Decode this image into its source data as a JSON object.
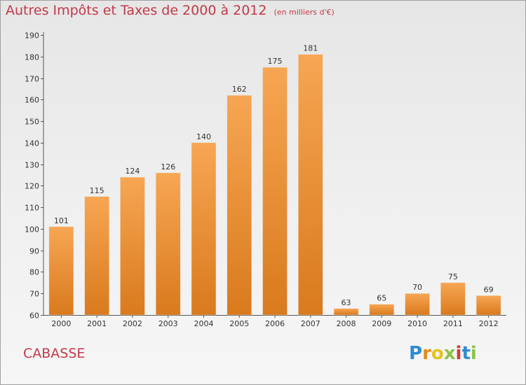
{
  "header": {
    "title": "Autres Impôts et Taxes de 2000 à 2012",
    "unit": "(en milliers d'€)"
  },
  "footer": {
    "commune": "CABASSE",
    "logo_letters": [
      "P",
      "r",
      "o",
      "x",
      "i",
      "t",
      "i"
    ],
    "logo_colors": [
      "#2e8bd0",
      "#e68a1a",
      "#e6c21a",
      "#8bc34a",
      "#d23a3a",
      "#2e8bd0",
      "#8bc34a"
    ]
  },
  "colors": {
    "bar_light": "#f7a653",
    "bar_dark": "#d97a1d",
    "title": "#c03a4a"
  },
  "chart_data": {
    "type": "bar",
    "title": "Autres Impôts et Taxes de 2000 à 2012",
    "subtitle": "(en milliers d'€)",
    "xlabel": "",
    "ylabel": "",
    "categories": [
      "2000",
      "2001",
      "2002",
      "2003",
      "2004",
      "2005",
      "2006",
      "2007",
      "2008",
      "2009",
      "2010",
      "2011",
      "2012"
    ],
    "values": [
      101,
      115,
      124,
      126,
      140,
      162,
      175,
      181,
      63,
      65,
      70,
      75,
      69
    ],
    "ylim": [
      60,
      190
    ],
    "yticks": [
      60,
      70,
      80,
      90,
      100,
      110,
      120,
      130,
      140,
      150,
      160,
      170,
      180,
      190
    ],
    "grid": false,
    "legend": "none"
  }
}
